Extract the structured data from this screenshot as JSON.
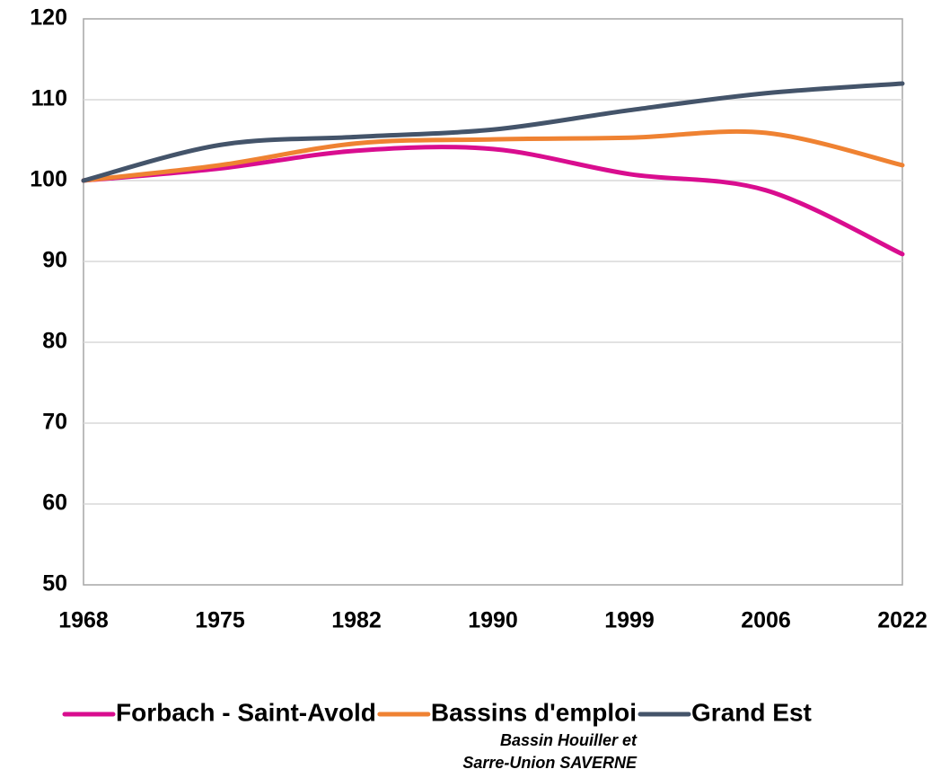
{
  "chart_data": {
    "type": "line",
    "categories": [
      "1968",
      "1975",
      "1982",
      "1990",
      "1999",
      "2006",
      "2022"
    ],
    "series": [
      {
        "name": "Forbach - Saint-Avold",
        "color": "#d90d8f",
        "values": [
          100,
          101.5,
          103.7,
          103.9,
          100.8,
          98.8,
          90.9
        ]
      },
      {
        "name": "Bassins d'emploi",
        "color": "#ef8232",
        "values": [
          100,
          101.9,
          104.6,
          105.1,
          105.3,
          105.9,
          101.9
        ]
      },
      {
        "name": "Grand Est",
        "color": "#44546a",
        "values": [
          100,
          104.4,
          105.4,
          106.3,
          108.7,
          110.8,
          112.0
        ]
      }
    ],
    "legend_note": [
      "Bassin Houiller et",
      "Sarre-Union SAVERNE"
    ],
    "ylim": [
      50,
      120
    ],
    "yticks": [
      50,
      60,
      70,
      80,
      90,
      100,
      110,
      120
    ],
    "grid": true,
    "smooth": true,
    "legend": "bottom"
  }
}
